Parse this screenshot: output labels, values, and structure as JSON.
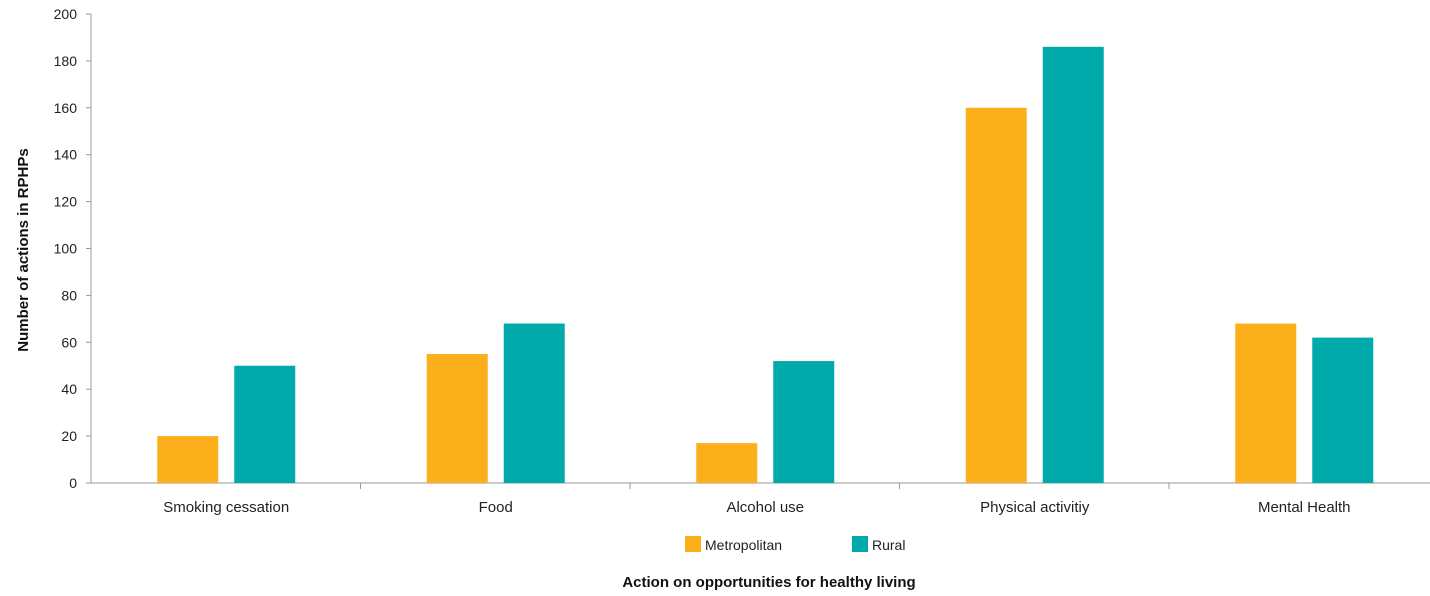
{
  "chart_data": {
    "type": "bar",
    "categories": [
      "Smoking cessation",
      "Food",
      "Alcohol use",
      "Physical activitiy",
      "Mental Health"
    ],
    "series": [
      {
        "name": "Metropolitan",
        "values": [
          20,
          55,
          17,
          160,
          68
        ],
        "color": "#FBAF1B"
      },
      {
        "name": "Rural",
        "values": [
          50,
          68,
          52,
          186,
          62
        ],
        "color": "#00AAAA"
      }
    ],
    "xlabel": "Action on opportunities for healthy living",
    "ylabel": "Number of actions in RPHPs",
    "ylim": [
      0,
      200
    ],
    "yticks": [
      0,
      20,
      40,
      60,
      80,
      100,
      120,
      140,
      160,
      180,
      200
    ],
    "grid": false,
    "legend_position": "bottom-center"
  }
}
